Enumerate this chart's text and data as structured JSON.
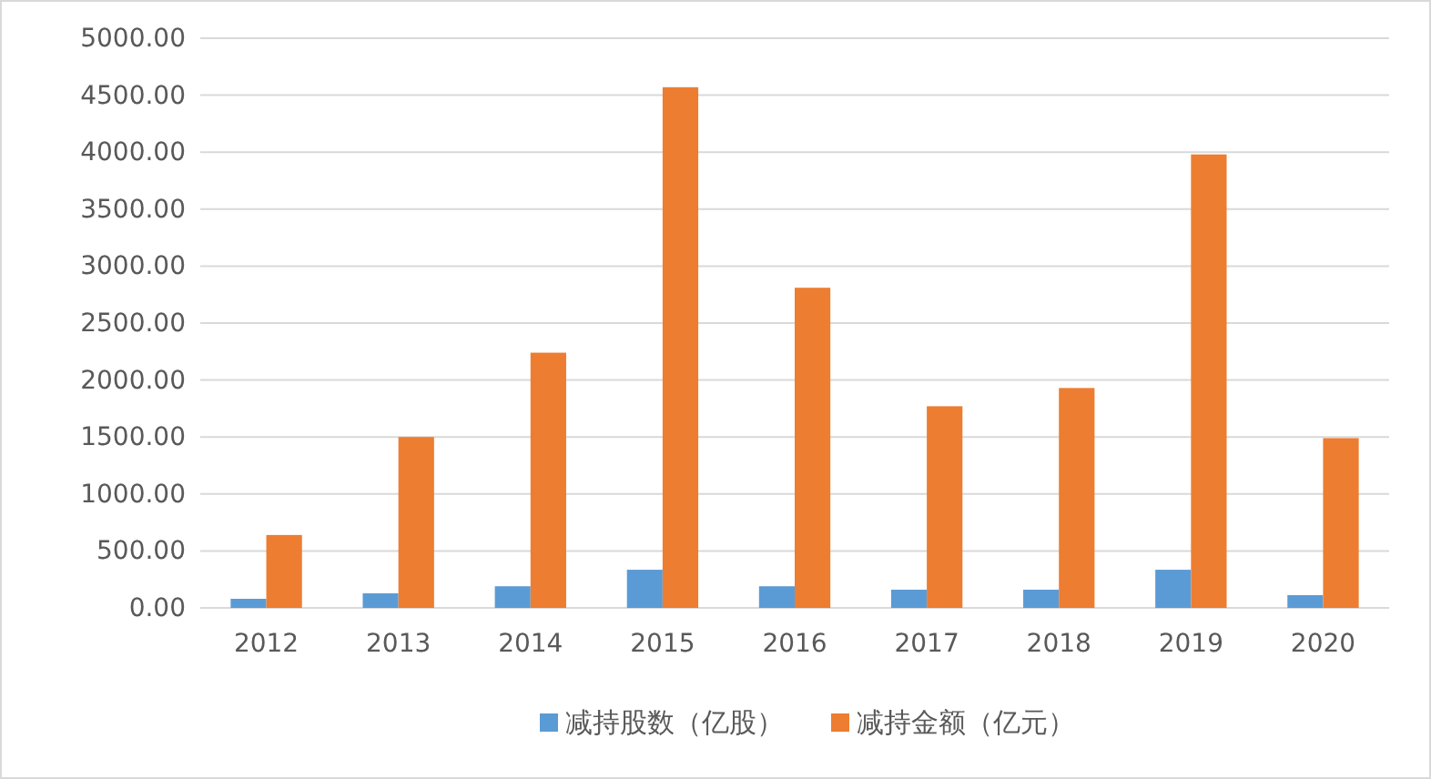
{
  "chart_data": {
    "type": "bar",
    "categories": [
      "2012",
      "2013",
      "2014",
      "2015",
      "2016",
      "2017",
      "2018",
      "2019",
      "2020"
    ],
    "series": [
      {
        "name": "减持股数（亿股）",
        "color": "#5b9bd5",
        "values": [
          80,
          128,
          190,
          335,
          190,
          160,
          160,
          335,
          112
        ]
      },
      {
        "name": "减持金额（亿元）",
        "color": "#ed7d31",
        "values": [
          640,
          1500,
          2240,
          4570,
          2810,
          1770,
          1930,
          3980,
          1490
        ]
      }
    ],
    "ylim": [
      0,
      5000
    ],
    "yticks": [
      {
        "value": 0,
        "label": "0.00"
      },
      {
        "value": 500,
        "label": "500.00"
      },
      {
        "value": 1000,
        "label": "1000.00"
      },
      {
        "value": 1500,
        "label": "1500.00"
      },
      {
        "value": 2000,
        "label": "2000.00"
      },
      {
        "value": 2500,
        "label": "2500.00"
      },
      {
        "value": 3000,
        "label": "3000.00"
      },
      {
        "value": 3500,
        "label": "3500.00"
      },
      {
        "value": 4000,
        "label": "4000.00"
      },
      {
        "value": 4500,
        "label": "4500.00"
      },
      {
        "value": 5000,
        "label": "5000.00"
      }
    ],
    "grid": "y",
    "legend": "bottom"
  }
}
